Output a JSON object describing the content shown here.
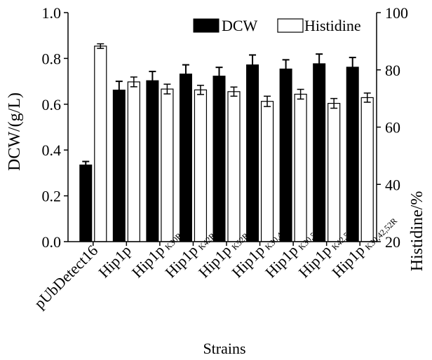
{
  "chart_data": {
    "type": "bar",
    "title": "",
    "xlabel": "Strains",
    "ylabel_left": "DCW/(g/L)",
    "ylabel_right": "Histidine/%",
    "ylim_left": [
      0,
      1.0
    ],
    "ylim_right": [
      20,
      100
    ],
    "yticks_left": [
      "0.0",
      "0.2",
      "0.4",
      "0.6",
      "0.8",
      "1.0"
    ],
    "yticks_right": [
      "20",
      "40",
      "60",
      "80",
      "100"
    ],
    "legend_position": "top-right",
    "grid": false,
    "categories": [
      {
        "name": "pUbDetect16",
        "sub": ""
      },
      {
        "name": "Hip1p",
        "sub": ""
      },
      {
        "name": "Hip1p",
        "sub": "K30R"
      },
      {
        "name": "Hip1p",
        "sub": "K42R"
      },
      {
        "name": "Hip1p",
        "sub": "K52R"
      },
      {
        "name": "Hip1p",
        "sub": "K30,42R"
      },
      {
        "name": "Hip1p",
        "sub": "K30,52R"
      },
      {
        "name": "Hip1p",
        "sub": "K42,52R"
      },
      {
        "name": "Hip1p",
        "sub": "K30,42,52R"
      }
    ],
    "series": [
      {
        "name": "DCW",
        "axis": "left",
        "color": "#000000",
        "values": [
          0.335,
          0.662,
          0.703,
          0.732,
          0.723,
          0.772,
          0.754,
          0.777,
          0.762
        ],
        "errors": [
          0.015,
          0.038,
          0.04,
          0.04,
          0.038,
          0.043,
          0.04,
          0.042,
          0.042
        ]
      },
      {
        "name": "Histidine",
        "axis": "right",
        "color": "#ffffff",
        "values": [
          88.3,
          75.8,
          73.3,
          73.0,
          72.4,
          69.0,
          71.5,
          68.3,
          70.3
        ],
        "errors": [
          0.8,
          1.7,
          1.7,
          1.6,
          1.6,
          1.8,
          1.7,
          1.7,
          1.6
        ]
      }
    ]
  }
}
